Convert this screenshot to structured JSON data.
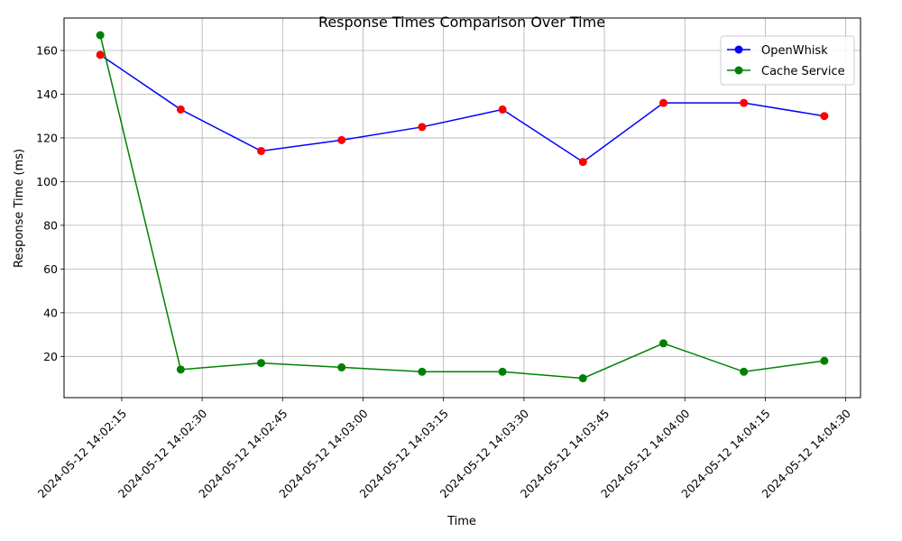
{
  "chart_data": {
    "type": "line",
    "title": "Response Times Comparison Over Time",
    "xlabel": "Time",
    "ylabel": "Response Time (ms)",
    "x": [
      "2024-05-12 14:02:11",
      "2024-05-12 14:02:26",
      "2024-05-12 14:02:41",
      "2024-05-12 14:02:56",
      "2024-05-12 14:03:11",
      "2024-05-12 14:03:26",
      "2024-05-12 14:03:41",
      "2024-05-12 14:03:56",
      "2024-05-12 14:04:11",
      "2024-05-12 14:04:26"
    ],
    "series": [
      {
        "name": "OpenWhisk",
        "color": "#0000ff",
        "marker_color": "#ff0000",
        "values": [
          158,
          133,
          114,
          119,
          125,
          133,
          109,
          136,
          136,
          130
        ]
      },
      {
        "name": "Cache Service",
        "color": "#008000",
        "marker_color": "#008000",
        "values": [
          167,
          14,
          17,
          15,
          13,
          13,
          10,
          26,
          13,
          18
        ]
      }
    ],
    "x_ticks": [
      "2024-05-12 14:02:15",
      "2024-05-12 14:02:30",
      "2024-05-12 14:02:45",
      "2024-05-12 14:03:00",
      "2024-05-12 14:03:15",
      "2024-05-12 14:03:30",
      "2024-05-12 14:03:45",
      "2024-05-12 14:04:00",
      "2024-05-12 14:04:15",
      "2024-05-12 14:04:30"
    ],
    "y_ticks": [
      20,
      40,
      60,
      80,
      100,
      120,
      140,
      160
    ],
    "ylim": [
      1.15,
      174.85
    ],
    "xlim": [
      "2024-05-12 14:02:04.25",
      "2024-05-12 14:04:32.75"
    ],
    "grid": true,
    "legend": "top-right"
  }
}
